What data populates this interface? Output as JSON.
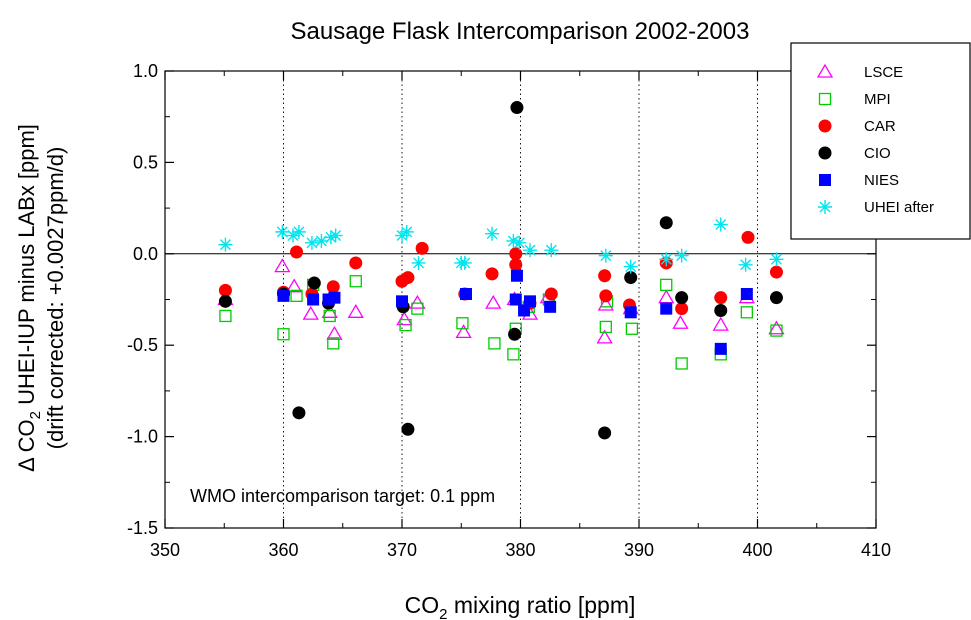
{
  "chart_data": {
    "type": "scatter",
    "title": "Sausage Flask Intercomparison 2002-2003",
    "xlabel": {
      "pre": "CO",
      "sub": "2",
      "post": " mixing ratio [ppm]"
    },
    "ylabel": {
      "line1_pre": "Δ CO",
      "line1_sub": "2",
      "line1_post": " UHEI-IUP minus LABx [ppm]",
      "line2": "(drift corrected: +0.0027ppm/d)"
    },
    "xlim": [
      350,
      410
    ],
    "ylim": [
      -1.5,
      1.0
    ],
    "xticks": [
      350,
      360,
      370,
      380,
      390,
      400,
      410
    ],
    "xtick_labels": [
      "350",
      "360",
      "370",
      "380",
      "390",
      "400",
      "410"
    ],
    "yticks": [
      -1.5,
      -1.0,
      -0.5,
      0.0,
      0.5,
      1.0
    ],
    "ytick_labels": [
      "-1.5",
      "-1.0",
      "-0.5",
      "0.0",
      "0.5",
      "1.0"
    ],
    "vlines": [
      360,
      370,
      380,
      390,
      400
    ],
    "hline": 0,
    "annotation": "WMO intercomparison target: 0.1 ppm",
    "legend_position": "top-right",
    "series": [
      {
        "name": "LSCE",
        "marker": "triangle-open",
        "color": "#ff00ff",
        "points": [
          [
            355.1,
            -0.25
          ],
          [
            359.9,
            -0.07
          ],
          [
            360.9,
            -0.18
          ],
          [
            362.3,
            -0.33
          ],
          [
            363.9,
            -0.32
          ],
          [
            364.3,
            -0.44
          ],
          [
            366.1,
            -0.32
          ],
          [
            370.2,
            -0.36
          ],
          [
            371.3,
            -0.27
          ],
          [
            375.2,
            -0.43
          ],
          [
            377.7,
            -0.27
          ],
          [
            379.5,
            -0.25
          ],
          [
            380.8,
            -0.33
          ],
          [
            382.3,
            -0.24
          ],
          [
            387.1,
            -0.46
          ],
          [
            387.2,
            -0.28
          ],
          [
            389.3,
            -0.3
          ],
          [
            392.3,
            -0.24
          ],
          [
            393.5,
            -0.38
          ],
          [
            396.9,
            -0.39
          ],
          [
            399.1,
            -0.24
          ],
          [
            401.6,
            -0.41
          ]
        ]
      },
      {
        "name": "MPI",
        "marker": "square-open",
        "color": "#00cc00",
        "points": [
          [
            355.1,
            -0.34
          ],
          [
            360.0,
            -0.44
          ],
          [
            361.1,
            -0.23
          ],
          [
            362.5,
            -0.17
          ],
          [
            363.9,
            -0.34
          ],
          [
            364.2,
            -0.49
          ],
          [
            366.1,
            -0.15
          ],
          [
            370.3,
            -0.39
          ],
          [
            371.3,
            -0.3
          ],
          [
            375.1,
            -0.38
          ],
          [
            377.8,
            -0.49
          ],
          [
            379.4,
            -0.55
          ],
          [
            379.6,
            -0.41
          ],
          [
            380.7,
            -0.29
          ],
          [
            382.4,
            -0.25
          ],
          [
            387.2,
            -0.4
          ],
          [
            387.3,
            -0.26
          ],
          [
            389.4,
            -0.41
          ],
          [
            392.3,
            -0.17
          ],
          [
            393.6,
            -0.6
          ],
          [
            396.9,
            -0.55
          ],
          [
            399.1,
            -0.32
          ],
          [
            401.6,
            -0.42
          ]
        ]
      },
      {
        "name": "CAR",
        "marker": "circle-filled",
        "color": "#ff0000",
        "points": [
          [
            355.1,
            -0.2
          ],
          [
            360.0,
            -0.21
          ],
          [
            361.1,
            0.01
          ],
          [
            362.4,
            -0.22
          ],
          [
            364.2,
            -0.18
          ],
          [
            366.1,
            -0.05
          ],
          [
            370.0,
            -0.15
          ],
          [
            370.5,
            -0.13
          ],
          [
            371.7,
            0.03
          ],
          [
            375.3,
            -0.22
          ],
          [
            377.6,
            -0.11
          ],
          [
            379.6,
            0.0
          ],
          [
            379.6,
            -0.06
          ],
          [
            380.8,
            -0.27
          ],
          [
            382.6,
            -0.22
          ],
          [
            387.1,
            -0.12
          ],
          [
            387.2,
            -0.23
          ],
          [
            389.2,
            -0.28
          ],
          [
            392.3,
            -0.05
          ],
          [
            393.6,
            -0.3
          ],
          [
            396.9,
            -0.24
          ],
          [
            399.2,
            0.09
          ],
          [
            401.6,
            -0.1
          ]
        ]
      },
      {
        "name": "CIO",
        "marker": "circle-filled",
        "color": "#000000",
        "points": [
          [
            355.1,
            -0.26
          ],
          [
            360.0,
            -0.22
          ],
          [
            361.3,
            -0.87
          ],
          [
            362.6,
            -0.16
          ],
          [
            363.8,
            -0.27
          ],
          [
            370.1,
            -0.29
          ],
          [
            370.5,
            -0.96
          ],
          [
            379.7,
            0.8
          ],
          [
            379.5,
            -0.44
          ],
          [
            387.1,
            -0.98
          ],
          [
            389.3,
            -0.13
          ],
          [
            392.3,
            0.17
          ],
          [
            393.6,
            -0.24
          ],
          [
            396.9,
            -0.31
          ],
          [
            401.6,
            -0.24
          ]
        ]
      },
      {
        "name": "NIES",
        "marker": "square-filled",
        "color": "#0000ff",
        "points": [
          [
            360.0,
            -0.23
          ],
          [
            362.5,
            -0.25
          ],
          [
            363.8,
            -0.25
          ],
          [
            364.3,
            -0.24
          ],
          [
            370.0,
            -0.26
          ],
          [
            375.4,
            -0.22
          ],
          [
            379.7,
            -0.12
          ],
          [
            379.6,
            -0.25
          ],
          [
            380.3,
            -0.31
          ],
          [
            380.8,
            -0.26
          ],
          [
            382.5,
            -0.29
          ],
          [
            389.3,
            -0.32
          ],
          [
            392.3,
            -0.3
          ],
          [
            396.9,
            -0.52
          ],
          [
            399.1,
            -0.22
          ]
        ]
      },
      {
        "name": "UHEI after",
        "marker": "asterisk",
        "color": "#00e5ee",
        "points": [
          [
            355.1,
            0.05
          ],
          [
            359.9,
            0.12
          ],
          [
            360.8,
            0.1
          ],
          [
            361.3,
            0.12
          ],
          [
            362.4,
            0.06
          ],
          [
            363.2,
            0.07
          ],
          [
            364.0,
            0.09
          ],
          [
            364.4,
            0.1
          ],
          [
            370.0,
            0.1
          ],
          [
            370.4,
            0.12
          ],
          [
            371.4,
            -0.05
          ],
          [
            375.0,
            -0.05
          ],
          [
            375.3,
            -0.05
          ],
          [
            377.6,
            0.11
          ],
          [
            379.4,
            0.07
          ],
          [
            379.9,
            0.06
          ],
          [
            380.8,
            0.02
          ],
          [
            382.6,
            0.02
          ],
          [
            387.2,
            -0.01
          ],
          [
            389.3,
            -0.07
          ],
          [
            392.3,
            -0.03
          ],
          [
            393.6,
            -0.01
          ],
          [
            396.9,
            0.16
          ],
          [
            399.0,
            -0.06
          ],
          [
            401.6,
            -0.03
          ]
        ]
      }
    ]
  }
}
